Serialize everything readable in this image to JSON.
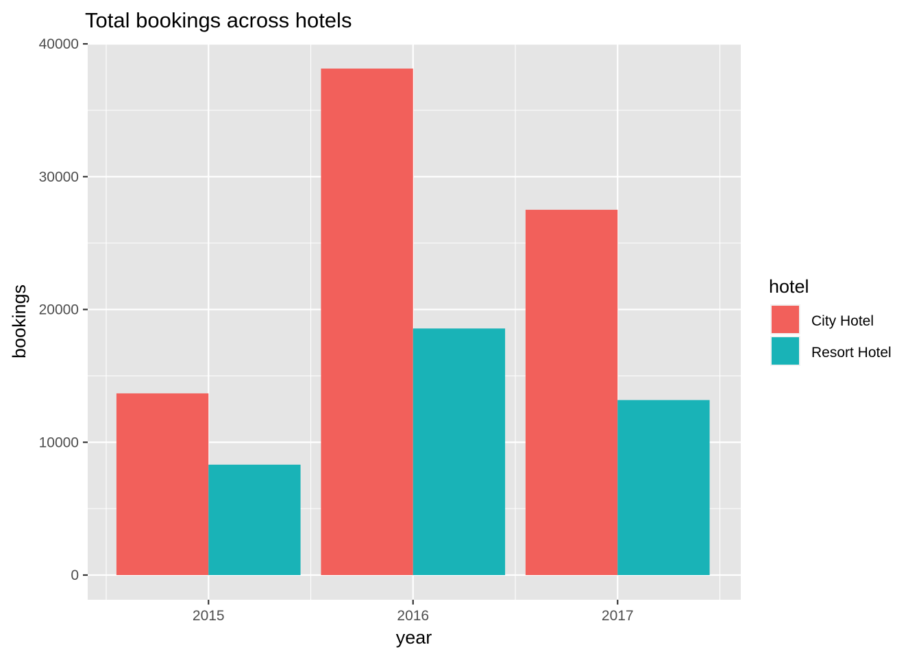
{
  "chart_data": {
    "type": "bar",
    "title": "Total bookings across hotels",
    "xlabel": "year",
    "ylabel": "bookings",
    "categories": [
      "2015",
      "2016",
      "2017"
    ],
    "series": [
      {
        "name": "City Hotel",
        "values": [
          13682,
          38140,
          27508
        ],
        "color": "#F2605B"
      },
      {
        "name": "Resort Hotel",
        "values": [
          8314,
          18567,
          13179
        ],
        "color": "#19B3B7"
      }
    ],
    "ylim": [
      0,
      40000
    ],
    "yticks": [
      0,
      10000,
      20000,
      30000,
      40000
    ],
    "ytick_labels": [
      "0",
      "10000",
      "20000",
      "30000",
      "40000"
    ],
    "legend": {
      "title": "hotel",
      "position": "right"
    },
    "grid": true,
    "panel_background": "#E5E5E5",
    "grid_color": "#FFFFFF"
  }
}
